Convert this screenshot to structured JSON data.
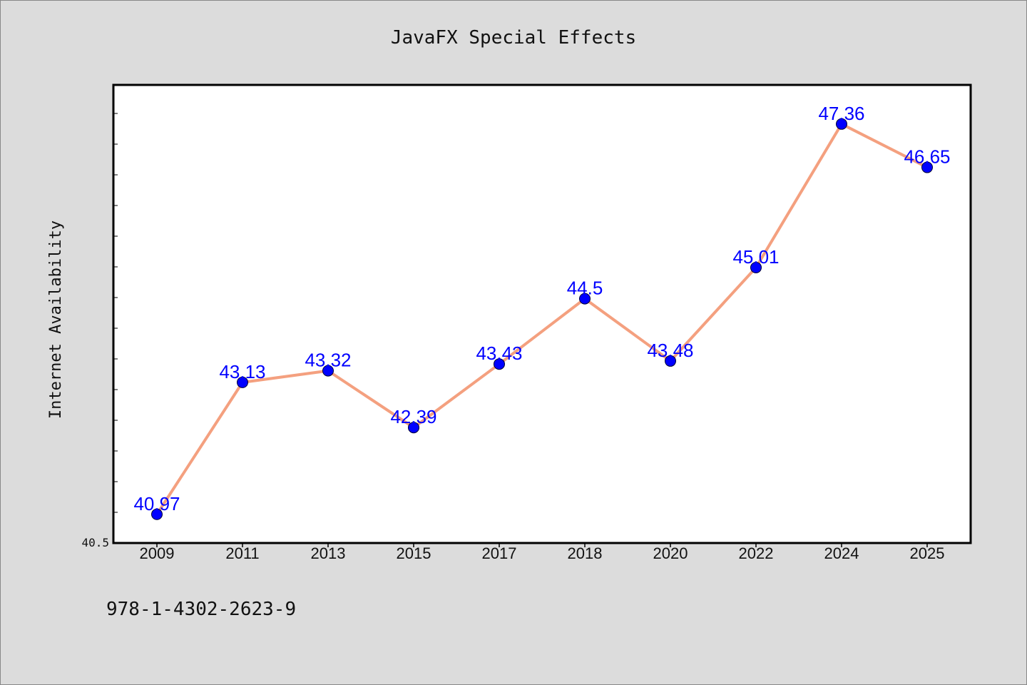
{
  "chart_data": {
    "type": "line",
    "title": "JavaFX Special Effects",
    "xlabel": "",
    "ylabel": "Internet Availability",
    "categories": [
      "2009",
      "2011",
      "2013",
      "2015",
      "2017",
      "2018",
      "2020",
      "2022",
      "2024",
      "2025"
    ],
    "series": [
      {
        "values": [
          40.97,
          43.13,
          43.32,
          42.39,
          43.43,
          44.5,
          43.48,
          45.01,
          47.36,
          46.65
        ],
        "data_labels": [
          "40.97",
          "43.13",
          "43.32",
          "42.39",
          "43.43",
          "44.5",
          "43.48",
          "45.01",
          "47.36",
          "46.65"
        ]
      }
    ],
    "y_tick_labels": [
      "40.5"
    ],
    "ylim": [
      40.5,
      48.0
    ],
    "grid": false,
    "legend": "none",
    "colors": {
      "line": "#f4a07f",
      "marker": "#0000ff",
      "labels": "#0000ff",
      "background": "#dcdcdc",
      "plot_background": "#ffffff"
    }
  },
  "footer": {
    "isbn": "978-1-4302-2623-9"
  }
}
